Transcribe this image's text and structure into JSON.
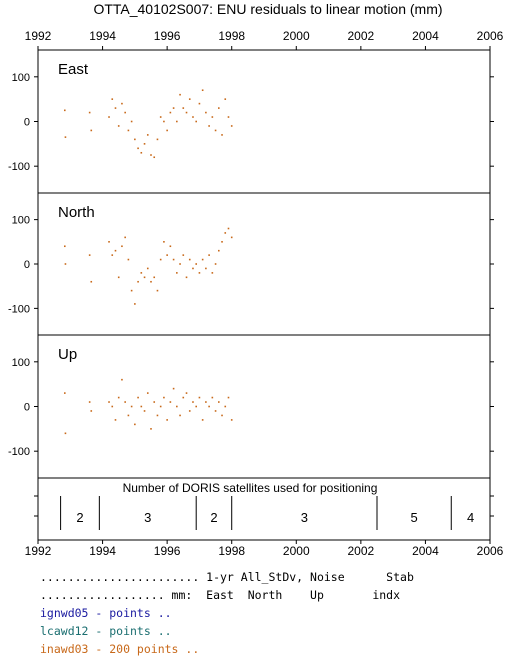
{
  "title": "OTTA_40102S007: ENU residuals to linear motion (mm)",
  "colors": {
    "points": "#c8691a",
    "axis": "#000000",
    "legend_1": "#1a1aa0",
    "legend_2": "#1a6e70",
    "legend_3": "#c8691a"
  },
  "chart_data": {
    "type": "scatter",
    "x_range": [
      1992,
      2006
    ],
    "x_ticks": [
      "1992",
      "1994",
      "1996",
      "1998",
      "2000",
      "2002",
      "2004",
      "2006"
    ],
    "y_range": [
      -160,
      160
    ],
    "y_ticks": [
      "100",
      "0",
      "-100"
    ],
    "panels": [
      {
        "name": "East",
        "points": [
          [
            1992.83,
            25
          ],
          [
            1992.85,
            -35
          ],
          [
            1993.6,
            20
          ],
          [
            1993.65,
            -20
          ],
          [
            1994.2,
            10
          ],
          [
            1994.3,
            50
          ],
          [
            1994.4,
            30
          ],
          [
            1994.5,
            -10
          ],
          [
            1994.6,
            40
          ],
          [
            1994.7,
            20
          ],
          [
            1994.8,
            -20
          ],
          [
            1994.9,
            0
          ],
          [
            1995.0,
            -40
          ],
          [
            1995.1,
            -60
          ],
          [
            1995.2,
            -70
          ],
          [
            1995.3,
            -50
          ],
          [
            1995.4,
            -30
          ],
          [
            1995.5,
            -75
          ],
          [
            1995.6,
            -80
          ],
          [
            1995.7,
            -40
          ],
          [
            1995.8,
            10
          ],
          [
            1995.9,
            0
          ],
          [
            1996.0,
            -20
          ],
          [
            1996.1,
            20
          ],
          [
            1996.2,
            30
          ],
          [
            1996.3,
            0
          ],
          [
            1996.4,
            60
          ],
          [
            1996.5,
            30
          ],
          [
            1996.6,
            20
          ],
          [
            1996.7,
            50
          ],
          [
            1996.8,
            10
          ],
          [
            1996.9,
            0
          ],
          [
            1997.0,
            40
          ],
          [
            1997.1,
            70
          ],
          [
            1997.2,
            20
          ],
          [
            1997.3,
            -10
          ],
          [
            1997.4,
            10
          ],
          [
            1997.5,
            -20
          ],
          [
            1997.6,
            30
          ],
          [
            1997.7,
            -30
          ],
          [
            1997.8,
            50
          ],
          [
            1997.9,
            10
          ],
          [
            1998.0,
            -10
          ]
        ]
      },
      {
        "name": "North",
        "points": [
          [
            1992.83,
            40
          ],
          [
            1992.85,
            0
          ],
          [
            1993.6,
            20
          ],
          [
            1993.65,
            -40
          ],
          [
            1994.2,
            50
          ],
          [
            1994.3,
            20
          ],
          [
            1994.4,
            30
          ],
          [
            1994.5,
            -30
          ],
          [
            1994.6,
            40
          ],
          [
            1994.7,
            60
          ],
          [
            1994.8,
            10
          ],
          [
            1994.9,
            -60
          ],
          [
            1995.0,
            -90
          ],
          [
            1995.1,
            -40
          ],
          [
            1995.2,
            -20
          ],
          [
            1995.3,
            -30
          ],
          [
            1995.4,
            -10
          ],
          [
            1995.5,
            -40
          ],
          [
            1995.6,
            -30
          ],
          [
            1995.7,
            -60
          ],
          [
            1995.8,
            10
          ],
          [
            1995.9,
            50
          ],
          [
            1996.0,
            20
          ],
          [
            1996.1,
            40
          ],
          [
            1996.2,
            10
          ],
          [
            1996.3,
            -20
          ],
          [
            1996.4,
            0
          ],
          [
            1996.5,
            20
          ],
          [
            1996.6,
            -30
          ],
          [
            1996.7,
            10
          ],
          [
            1996.8,
            -10
          ],
          [
            1996.9,
            0
          ],
          [
            1997.0,
            -20
          ],
          [
            1997.1,
            10
          ],
          [
            1997.2,
            -10
          ],
          [
            1997.3,
            20
          ],
          [
            1997.4,
            -20
          ],
          [
            1997.5,
            0
          ],
          [
            1997.6,
            30
          ],
          [
            1997.7,
            50
          ],
          [
            1997.8,
            70
          ],
          [
            1997.9,
            80
          ],
          [
            1998.0,
            60
          ]
        ]
      },
      {
        "name": "Up",
        "points": [
          [
            1992.83,
            30
          ],
          [
            1992.85,
            -60
          ],
          [
            1993.6,
            10
          ],
          [
            1993.65,
            -10
          ],
          [
            1994.2,
            10
          ],
          [
            1994.3,
            0
          ],
          [
            1994.4,
            -30
          ],
          [
            1994.5,
            20
          ],
          [
            1994.6,
            60
          ],
          [
            1994.7,
            10
          ],
          [
            1994.8,
            -20
          ],
          [
            1994.9,
            0
          ],
          [
            1995.0,
            -40
          ],
          [
            1995.1,
            20
          ],
          [
            1995.2,
            0
          ],
          [
            1995.3,
            -10
          ],
          [
            1995.4,
            30
          ],
          [
            1995.5,
            -50
          ],
          [
            1995.6,
            10
          ],
          [
            1995.7,
            -20
          ],
          [
            1995.8,
            0
          ],
          [
            1995.9,
            20
          ],
          [
            1996.0,
            -30
          ],
          [
            1996.1,
            10
          ],
          [
            1996.2,
            40
          ],
          [
            1996.3,
            0
          ],
          [
            1996.4,
            -20
          ],
          [
            1996.5,
            20
          ],
          [
            1996.6,
            30
          ],
          [
            1996.7,
            -10
          ],
          [
            1996.8,
            10
          ],
          [
            1996.9,
            0
          ],
          [
            1997.0,
            20
          ],
          [
            1997.1,
            -30
          ],
          [
            1997.2,
            10
          ],
          [
            1997.3,
            0
          ],
          [
            1997.4,
            20
          ],
          [
            1997.5,
            -10
          ],
          [
            1997.6,
            10
          ],
          [
            1997.7,
            -20
          ],
          [
            1997.8,
            0
          ],
          [
            1997.9,
            20
          ],
          [
            1998.0,
            -30
          ]
        ]
      }
    ],
    "satellites_label": "Number of DORIS satellites used for positioning",
    "satellite_segments": [
      {
        "start": 1992.7,
        "end": 1993.9,
        "label": "2"
      },
      {
        "start": 1993.9,
        "end": 1996.9,
        "label": "3"
      },
      {
        "start": 1996.9,
        "end": 1998.0,
        "label": "2"
      },
      {
        "start": 1998.0,
        "end": 2002.5,
        "label": "3"
      },
      {
        "start": 2002.5,
        "end": 2004.8,
        "label": "5"
      },
      {
        "start": 2004.8,
        "end": 2006.0,
        "label": "4"
      }
    ]
  },
  "footer": {
    "header_1": "....................... 1-yr All_StDv, Noise      Stab",
    "header_2": ".................. mm:  East  North    Up       indx",
    "legend": [
      {
        "text": "ignwd05 - points .."
      },
      {
        "text": "lcawd12 - points .."
      },
      {
        "text": "inawd03 - 200 points .."
      }
    ]
  }
}
